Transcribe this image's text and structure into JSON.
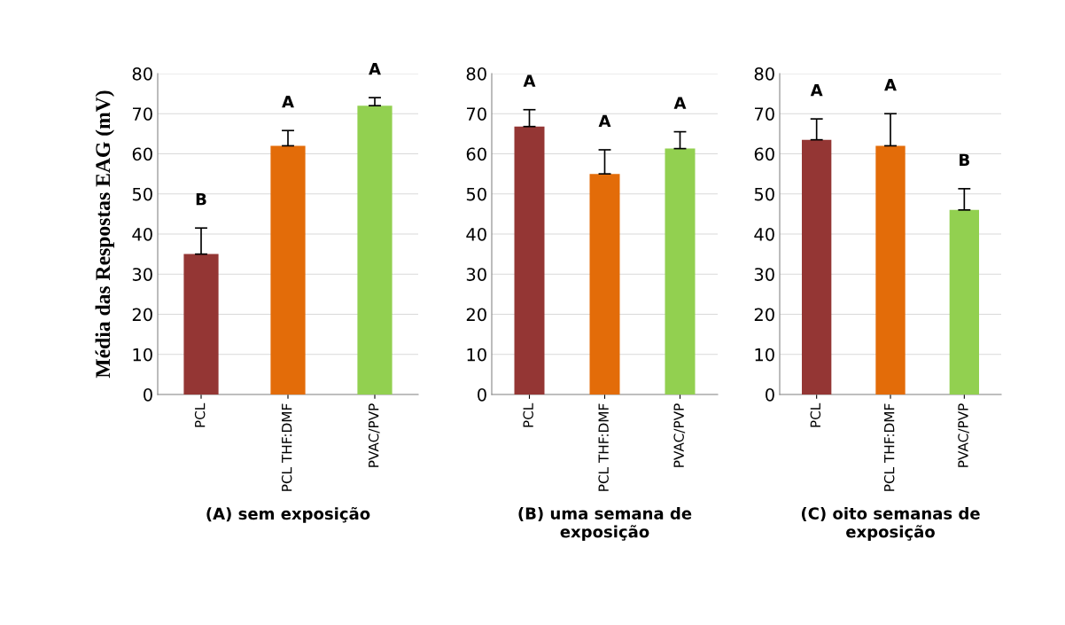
{
  "chart_data": [
    {
      "type": "bar",
      "xlabel": "(A) sem exposição",
      "ylabel": "Média das Respostas EAG (mV)",
      "categories": [
        "PCL",
        "PCL THF:DMF",
        "PVAC/PVP"
      ],
      "values": [
        35,
        62,
        72
      ],
      "colors": [
        "#943634",
        "#e36c09",
        "#92d050"
      ],
      "errors": [
        [
          35,
          41.5
        ],
        [
          62,
          65.8
        ],
        [
          72,
          74
        ]
      ],
      "ylim": [
        0,
        80
      ],
      "yticks": [
        0,
        10,
        20,
        30,
        40,
        50,
        60,
        70,
        80
      ],
      "grid": "y",
      "legend": false,
      "annotations": [
        "B",
        "A",
        "A"
      ]
    },
    {
      "type": "bar",
      "xlabel": "(B) uma semana de\nexposição",
      "categories": [
        "PCL",
        "PCL THF:DMF",
        "PVAC/PVP"
      ],
      "values": [
        66.8,
        55,
        61.3
      ],
      "colors": [
        "#943634",
        "#e36c09",
        "#92d050"
      ],
      "errors": [
        [
          66.8,
          71
        ],
        [
          55,
          61
        ],
        [
          61.3,
          65.5
        ]
      ],
      "ylim": [
        0,
        80
      ],
      "yticks": [
        0,
        10,
        20,
        30,
        40,
        50,
        60,
        70,
        80
      ],
      "grid": "y",
      "legend": false,
      "annotations": [
        "A",
        "A",
        "A"
      ]
    },
    {
      "type": "bar",
      "xlabel": "(C) oito semanas de\nexposição",
      "categories": [
        "PCL",
        "PCL THF:DMF",
        "PVAC/PVP"
      ],
      "values": [
        63.5,
        62,
        46
      ],
      "colors": [
        "#943634",
        "#e36c09",
        "#92d050"
      ],
      "errors": [
        [
          63.5,
          68.7
        ],
        [
          62,
          70
        ],
        [
          46,
          51.3
        ]
      ],
      "ylim": [
        0,
        80
      ],
      "yticks": [
        0,
        10,
        20,
        30,
        40,
        50,
        60,
        70,
        80
      ],
      "grid": "y",
      "legend": false,
      "annotations": [
        "A",
        "A",
        "B"
      ]
    }
  ]
}
